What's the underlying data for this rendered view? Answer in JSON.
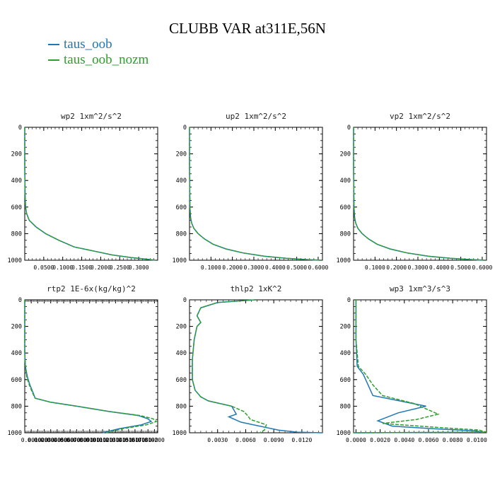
{
  "title": "CLUBB VAR at311E,56N",
  "legend": [
    {
      "label": "taus_oob",
      "color": "#1f77b4"
    },
    {
      "label": "taus_oob_nozm",
      "color": "#2ca02c"
    }
  ],
  "chart_data": [
    {
      "type": "line",
      "title": "wp2  1xm^2/s^2",
      "xlim": [
        0,
        0.35
      ],
      "ylim": [
        1000,
        0
      ],
      "xticks": [
        0.05,
        0.1,
        0.15,
        0.2,
        0.25,
        0.3
      ],
      "xtick_labels": [
        "0.0500",
        "0.1000",
        "0.1500",
        "0.2000",
        "0.2500",
        "0.3000"
      ],
      "yticks": [
        0,
        200,
        400,
        600,
        800,
        1000
      ],
      "ytick_labels": [
        "0",
        "200",
        "400",
        "600",
        "800",
        "1000"
      ],
      "series": [
        {
          "name": "taus_oob",
          "x": [
            0.0,
            0.0,
            0.001,
            0.002,
            0.005,
            0.012,
            0.03,
            0.055,
            0.09,
            0.13,
            0.18,
            0.23,
            0.28,
            0.32,
            0.345
          ],
          "y": [
            0,
            300,
            500,
            600,
            650,
            700,
            750,
            800,
            850,
            900,
            930,
            960,
            980,
            992,
            1000
          ]
        },
        {
          "name": "taus_oob_nozm",
          "dash": true,
          "x": [
            0.0,
            0.0,
            0.001,
            0.002,
            0.005,
            0.012,
            0.03,
            0.055,
            0.09,
            0.13,
            0.18,
            0.23,
            0.28,
            0.32,
            0.345
          ],
          "y": [
            0,
            300,
            500,
            600,
            650,
            700,
            750,
            800,
            850,
            900,
            930,
            960,
            980,
            992,
            1000
          ]
        }
      ]
    },
    {
      "type": "line",
      "title": "up2  1xm^2/s^2",
      "xlim": [
        0,
        0.62
      ],
      "ylim": [
        1000,
        0
      ],
      "xticks": [
        0.1,
        0.2,
        0.3,
        0.4,
        0.5,
        0.6
      ],
      "xtick_labels": [
        "0.1000",
        "0.2000",
        "0.3000",
        "0.4000",
        "0.5000",
        "0.6000"
      ],
      "yticks": [
        0,
        200,
        400,
        600,
        800,
        1000
      ],
      "ytick_labels": [
        "0",
        "200",
        "400",
        "600",
        "800",
        "1000"
      ],
      "series": [
        {
          "name": "taus_oob",
          "x": [
            0.0,
            0.0,
            0.002,
            0.005,
            0.01,
            0.02,
            0.04,
            0.07,
            0.11,
            0.17,
            0.25,
            0.35,
            0.45,
            0.55,
            0.61
          ],
          "y": [
            0,
            300,
            600,
            680,
            720,
            760,
            800,
            840,
            880,
            915,
            945,
            970,
            985,
            995,
            1000
          ]
        },
        {
          "name": "taus_oob_nozm",
          "dash": true,
          "x": [
            0.0,
            0.0,
            0.002,
            0.005,
            0.01,
            0.02,
            0.04,
            0.07,
            0.11,
            0.17,
            0.25,
            0.35,
            0.45,
            0.55,
            0.61
          ],
          "y": [
            0,
            300,
            600,
            680,
            720,
            760,
            800,
            840,
            880,
            915,
            945,
            970,
            985,
            995,
            1000
          ]
        }
      ]
    },
    {
      "type": "line",
      "title": "vp2  1xm^2/s^2",
      "xlim": [
        0,
        0.62
      ],
      "ylim": [
        1000,
        0
      ],
      "xticks": [
        0.1,
        0.2,
        0.3,
        0.4,
        0.5,
        0.6
      ],
      "xtick_labels": [
        "0.1000",
        "0.2000",
        "0.3000",
        "0.4000",
        "0.5000",
        "0.6000"
      ],
      "yticks": [
        0,
        200,
        400,
        600,
        800,
        1000
      ],
      "ytick_labels": [
        "0",
        "200",
        "400",
        "600",
        "800",
        "1000"
      ],
      "series": [
        {
          "name": "taus_oob",
          "x": [
            0.0,
            0.0,
            0.002,
            0.005,
            0.01,
            0.02,
            0.04,
            0.07,
            0.11,
            0.17,
            0.25,
            0.35,
            0.45,
            0.55,
            0.61
          ],
          "y": [
            0,
            300,
            600,
            680,
            720,
            760,
            800,
            840,
            880,
            915,
            945,
            970,
            985,
            995,
            1000
          ]
        },
        {
          "name": "taus_oob_nozm",
          "dash": true,
          "x": [
            0.0,
            0.0,
            0.002,
            0.005,
            0.01,
            0.02,
            0.04,
            0.07,
            0.11,
            0.17,
            0.25,
            0.35,
            0.45,
            0.55,
            0.61
          ],
          "y": [
            0,
            300,
            600,
            680,
            720,
            760,
            800,
            840,
            880,
            915,
            945,
            970,
            985,
            995,
            1000
          ]
        }
      ]
    },
    {
      "type": "line",
      "title": "rtp2  1E-6x(kg/kg)^2",
      "xlim": [
        0,
        0.0205
      ],
      "ylim": [
        1000,
        0
      ],
      "xticks": [
        0.001,
        0.002,
        0.003,
        0.004,
        0.005,
        0.006,
        0.007,
        0.008,
        0.009,
        0.01,
        0.011,
        0.012,
        0.013,
        0.014,
        0.015,
        0.016,
        0.017,
        0.018,
        0.019,
        0.02
      ],
      "xtick_labels": [
        "0.0010",
        "0.0020",
        "0.0030",
        "0.0040",
        "0.0050",
        "0.0060",
        "0.0070",
        "0.0080",
        "0.0090",
        "0.0100",
        "0.0110",
        "0.0120",
        "0.0130",
        "0.0140",
        "0.0150",
        "0.0160",
        "0.0170",
        "0.0180",
        "0.0190",
        "0.0200"
      ],
      "yticks": [
        0,
        200,
        400,
        600,
        800,
        1000
      ],
      "ytick_labels": [
        "0",
        "200",
        "400",
        "600",
        "800",
        "1000"
      ],
      "series": [
        {
          "name": "taus_oob",
          "x": [
            0.0,
            0.0,
            0.0001,
            0.0004,
            0.0008,
            0.0013,
            0.0016,
            0.004,
            0.008,
            0.013,
            0.0175,
            0.019,
            0.0195,
            0.018,
            0.0145,
            0.012
          ],
          "y": [
            0,
            400,
            500,
            580,
            640,
            700,
            740,
            770,
            800,
            840,
            870,
            895,
            915,
            940,
            970,
            1000
          ]
        },
        {
          "name": "taus_oob_nozm",
          "dash": true,
          "x": [
            0.0,
            0.0,
            0.0001,
            0.0003,
            0.0007,
            0.0012,
            0.0016,
            0.004,
            0.008,
            0.013,
            0.0178,
            0.0198,
            0.0203,
            0.0188,
            0.015,
            0.0125
          ],
          "y": [
            0,
            400,
            500,
            580,
            640,
            700,
            740,
            770,
            800,
            840,
            870,
            895,
            915,
            940,
            970,
            1000
          ]
        }
      ]
    },
    {
      "type": "line",
      "title": "thlp2  1xK^2",
      "xlim": [
        0,
        0.0142
      ],
      "ylim": [
        1000,
        0
      ],
      "xticks": [
        0.003,
        0.006,
        0.009,
        0.012
      ],
      "xtick_labels": [
        "0.0030",
        "0.0060",
        "0.0090",
        "0.0120"
      ],
      "yticks": [
        0,
        200,
        400,
        600,
        800,
        1000
      ],
      "ytick_labels": [
        "0",
        "200",
        "400",
        "600",
        "800",
        "1000"
      ],
      "series": [
        {
          "name": "taus_oob",
          "x": [
            0.007,
            0.003,
            0.0012,
            0.0008,
            0.0012,
            0.0008,
            0.0005,
            0.0003,
            0.0003,
            0.0006,
            0.0012,
            0.002,
            0.0045,
            0.005,
            0.0042,
            0.0055,
            0.0095,
            0.0115,
            0.0142
          ],
          "y": [
            0,
            20,
            60,
            120,
            170,
            200,
            300,
            450,
            600,
            680,
            730,
            760,
            800,
            860,
            880,
            920,
            980,
            995,
            1000
          ]
        },
        {
          "name": "taus_oob_nozm",
          "dash": true,
          "x": [
            0.007,
            0.003,
            0.0012,
            0.0008,
            0.0012,
            0.0008,
            0.0005,
            0.0003,
            0.0003,
            0.0006,
            0.0012,
            0.002,
            0.0045,
            0.0058,
            0.0062,
            0.0065,
            0.0082,
            0.008,
            0.0075
          ],
          "y": [
            0,
            20,
            60,
            120,
            170,
            200,
            300,
            450,
            600,
            680,
            730,
            760,
            800,
            840,
            870,
            900,
            940,
            980,
            1000
          ]
        }
      ]
    },
    {
      "type": "line",
      "title": "wp3  1xm^3/s^3",
      "xlim": [
        -0.0002,
        0.0108
      ],
      "ylim": [
        1000,
        0
      ],
      "xticks": [
        0.0,
        0.002,
        0.004,
        0.006,
        0.008,
        0.01
      ],
      "xtick_labels": [
        "0.0000",
        "0.0020",
        "0.0040",
        "0.0060",
        "0.0080",
        "0.0100"
      ],
      "yticks": [
        0,
        200,
        400,
        600,
        800,
        1000
      ],
      "ytick_labels": [
        "0",
        "200",
        "400",
        "600",
        "800",
        "1000"
      ],
      "series": [
        {
          "name": "taus_oob",
          "x": [
            0.0,
            0.0,
            0.0001,
            0.0006,
            0.001,
            0.0014,
            0.0058,
            0.0035,
            0.0018,
            0.003,
            0.0065,
            0.0098,
            0.0105,
            -0.0002
          ],
          "y": [
            0,
            300,
            500,
            560,
            640,
            720,
            800,
            850,
            910,
            950,
            970,
            985,
            995,
            1000
          ]
        },
        {
          "name": "taus_oob_nozm",
          "dash": true,
          "x": [
            0.0,
            0.0,
            0.0002,
            0.0008,
            0.0014,
            0.0022,
            0.0048,
            0.0068,
            0.005,
            0.0022,
            0.0068,
            0.0102,
            0.0108,
            -0.0002
          ],
          "y": [
            0,
            300,
            500,
            560,
            640,
            720,
            780,
            860,
            900,
            930,
            960,
            980,
            995,
            1000
          ]
        }
      ]
    }
  ]
}
